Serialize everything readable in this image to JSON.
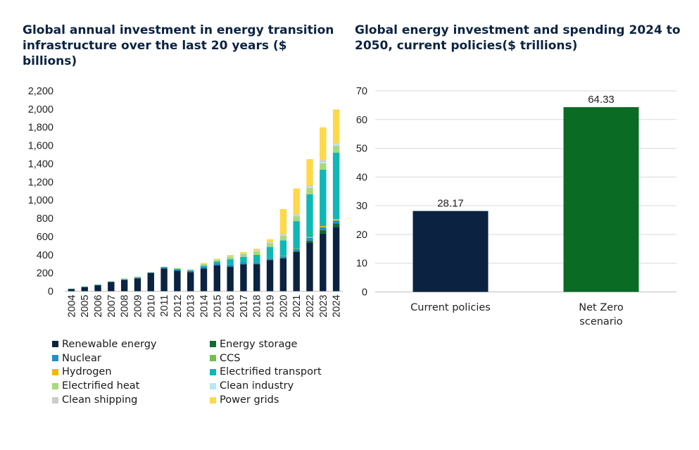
{
  "left_title": "Global annual investment in energy transition infrastructure over the last 20 years ($ billions)",
  "right_title": "Global energy investment and spending 2024 to 2050, current policies($ trillions)",
  "chart_data": [
    {
      "type": "bar",
      "stacked": true,
      "title": "Global annual investment in energy transition infrastructure over the last 20 years ($ billions)",
      "categories": [
        "2004",
        "2005",
        "2006",
        "2007",
        "2008",
        "2009",
        "2010",
        "2011",
        "2012",
        "2013",
        "2014",
        "2015",
        "2016",
        "2017",
        "2018",
        "2019",
        "2020",
        "2021",
        "2022",
        "2023",
        "2024"
      ],
      "ylim": [
        0,
        2200
      ],
      "yticks": [
        0,
        200,
        400,
        600,
        800,
        1000,
        1200,
        1400,
        1600,
        1800,
        2000,
        2200
      ],
      "ytick_labels": [
        "0",
        "200",
        "400",
        "600",
        "800",
        "1,000",
        "1,200",
        "1,400",
        "1,600",
        "1,800",
        "2,000",
        "2,200"
      ],
      "grid": false,
      "legend_position": "bottom",
      "series": [
        {
          "name": "Renewable energy",
          "color": "#0b2341",
          "values": [
            25,
            45,
            65,
            100,
            125,
            140,
            200,
            250,
            225,
            210,
            250,
            285,
            270,
            295,
            295,
            340,
            360,
            430,
            535,
            630,
            705
          ]
        },
        {
          "name": "Energy storage",
          "color": "#0f6b2e",
          "values": [
            0,
            0,
            0,
            0,
            0,
            0,
            0,
            0,
            0,
            0,
            0,
            0,
            1,
            2,
            3,
            5,
            5,
            10,
            20,
            40,
            38
          ]
        },
        {
          "name": "Nuclear",
          "color": "#1f8fd0",
          "values": [
            2,
            5,
            5,
            5,
            5,
            10,
            5,
            15,
            15,
            15,
            20,
            20,
            20,
            20,
            20,
            20,
            20,
            25,
            30,
            30,
            32
          ]
        },
        {
          "name": "CCS",
          "color": "#6fbf4a",
          "values": [
            0,
            0,
            0,
            0,
            0,
            0,
            0,
            0,
            0,
            0,
            0,
            0,
            0,
            0,
            1,
            1,
            1,
            2,
            5,
            5,
            5
          ]
        },
        {
          "name": "Hydrogen",
          "color": "#f5b800",
          "values": [
            0,
            0,
            0,
            0,
            0,
            0,
            0,
            0,
            0,
            0,
            0,
            0,
            0,
            0,
            0,
            0,
            1,
            2,
            5,
            10,
            12
          ]
        },
        {
          "name": "Electrified transport",
          "color": "#0fb7b7",
          "values": [
            0,
            0,
            0,
            0,
            0,
            0,
            0,
            0,
            5,
            5,
            10,
            20,
            60,
            60,
            80,
            120,
            170,
            300,
            470,
            620,
            730
          ]
        },
        {
          "name": "Electrified heat",
          "color": "#a9d97a",
          "values": [
            2,
            3,
            5,
            5,
            10,
            10,
            5,
            5,
            10,
            10,
            20,
            20,
            30,
            35,
            40,
            40,
            50,
            55,
            70,
            70,
            75
          ]
        },
        {
          "name": "Clean industry",
          "color": "#b9e6f7",
          "values": [
            0,
            0,
            0,
            0,
            0,
            0,
            0,
            0,
            0,
            0,
            0,
            2,
            2,
            3,
            3,
            5,
            5,
            5,
            10,
            15,
            18
          ]
        },
        {
          "name": "Clean shipping",
          "color": "#c9cdd1",
          "values": [
            0,
            0,
            0,
            0,
            0,
            0,
            0,
            0,
            0,
            0,
            0,
            0,
            0,
            0,
            5,
            10,
            15,
            20,
            15,
            20,
            10
          ]
        },
        {
          "name": "Power grids",
          "color": "#ffd84a",
          "values": [
            0,
            0,
            0,
            0,
            0,
            0,
            0,
            0,
            0,
            0,
            10,
            10,
            15,
            15,
            20,
            30,
            275,
            280,
            290,
            360,
            370
          ]
        }
      ]
    },
    {
      "type": "bar",
      "title": "Global energy investment and spending 2024 to 2050, current policies($ trillions)",
      "categories": [
        "Current policies",
        "Net Zero scenario"
      ],
      "category_lines": [
        [
          "Current policies"
        ],
        [
          "Net Zero",
          "scenario"
        ]
      ],
      "values": [
        28.17,
        64.33
      ],
      "value_labels": [
        "28.17",
        "64.33"
      ],
      "colors": [
        "#0b2341",
        "#0a6b25"
      ],
      "ylim": [
        0,
        70
      ],
      "yticks": [
        0,
        10,
        20,
        30,
        40,
        50,
        60,
        70
      ],
      "ytick_labels": [
        "0",
        "10",
        "20",
        "30",
        "40",
        "50",
        "60",
        "70"
      ],
      "grid": true
    }
  ]
}
